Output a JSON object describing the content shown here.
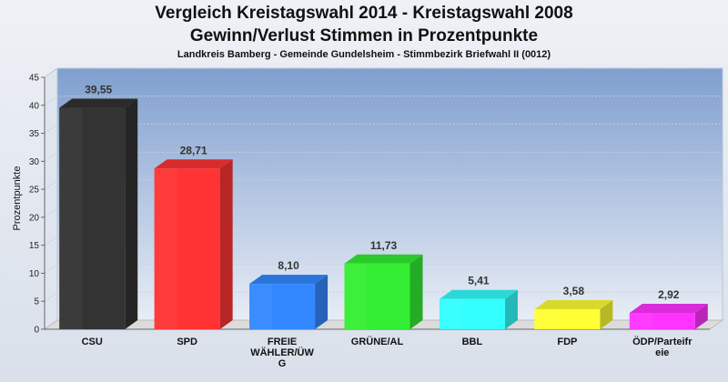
{
  "chart_data": {
    "type": "bar",
    "title_line1": "Vergleich Kreistagswahl 2014 - Kreistagswahl 2008",
    "title_line2": "Gewinn/Verlust Stimmen in Prozentpunkte",
    "subtitle": "Landkreis Bamberg - Gemeinde Gundelsheim - Stimmbezirk Briefwahl II (0012)",
    "ylabel": "Prozentpunkte",
    "ylim": [
      0,
      45
    ],
    "yticks": [
      0,
      5,
      10,
      15,
      20,
      25,
      30,
      35,
      40,
      45
    ],
    "grid": true,
    "categories": [
      [
        "CSU"
      ],
      [
        "SPD"
      ],
      [
        "FREIE",
        "WÄHLER/ÜW",
        "G"
      ],
      [
        "GRÜNE/AL"
      ],
      [
        "BBL"
      ],
      [
        "FDP"
      ],
      [
        "ÖDP/Parteifr",
        "eie"
      ]
    ],
    "values": [
      39.55,
      28.71,
      8.1,
      11.73,
      5.41,
      3.58,
      2.92
    ],
    "value_labels": [
      "39,55",
      "28,71",
      "8,10",
      "11,73",
      "5,41",
      "3,58",
      "2,92"
    ],
    "colors": [
      "#333333",
      "#ff3333",
      "#3388ff",
      "#33ee33",
      "#33ffff",
      "#ffff33",
      "#ff33ff"
    ]
  }
}
